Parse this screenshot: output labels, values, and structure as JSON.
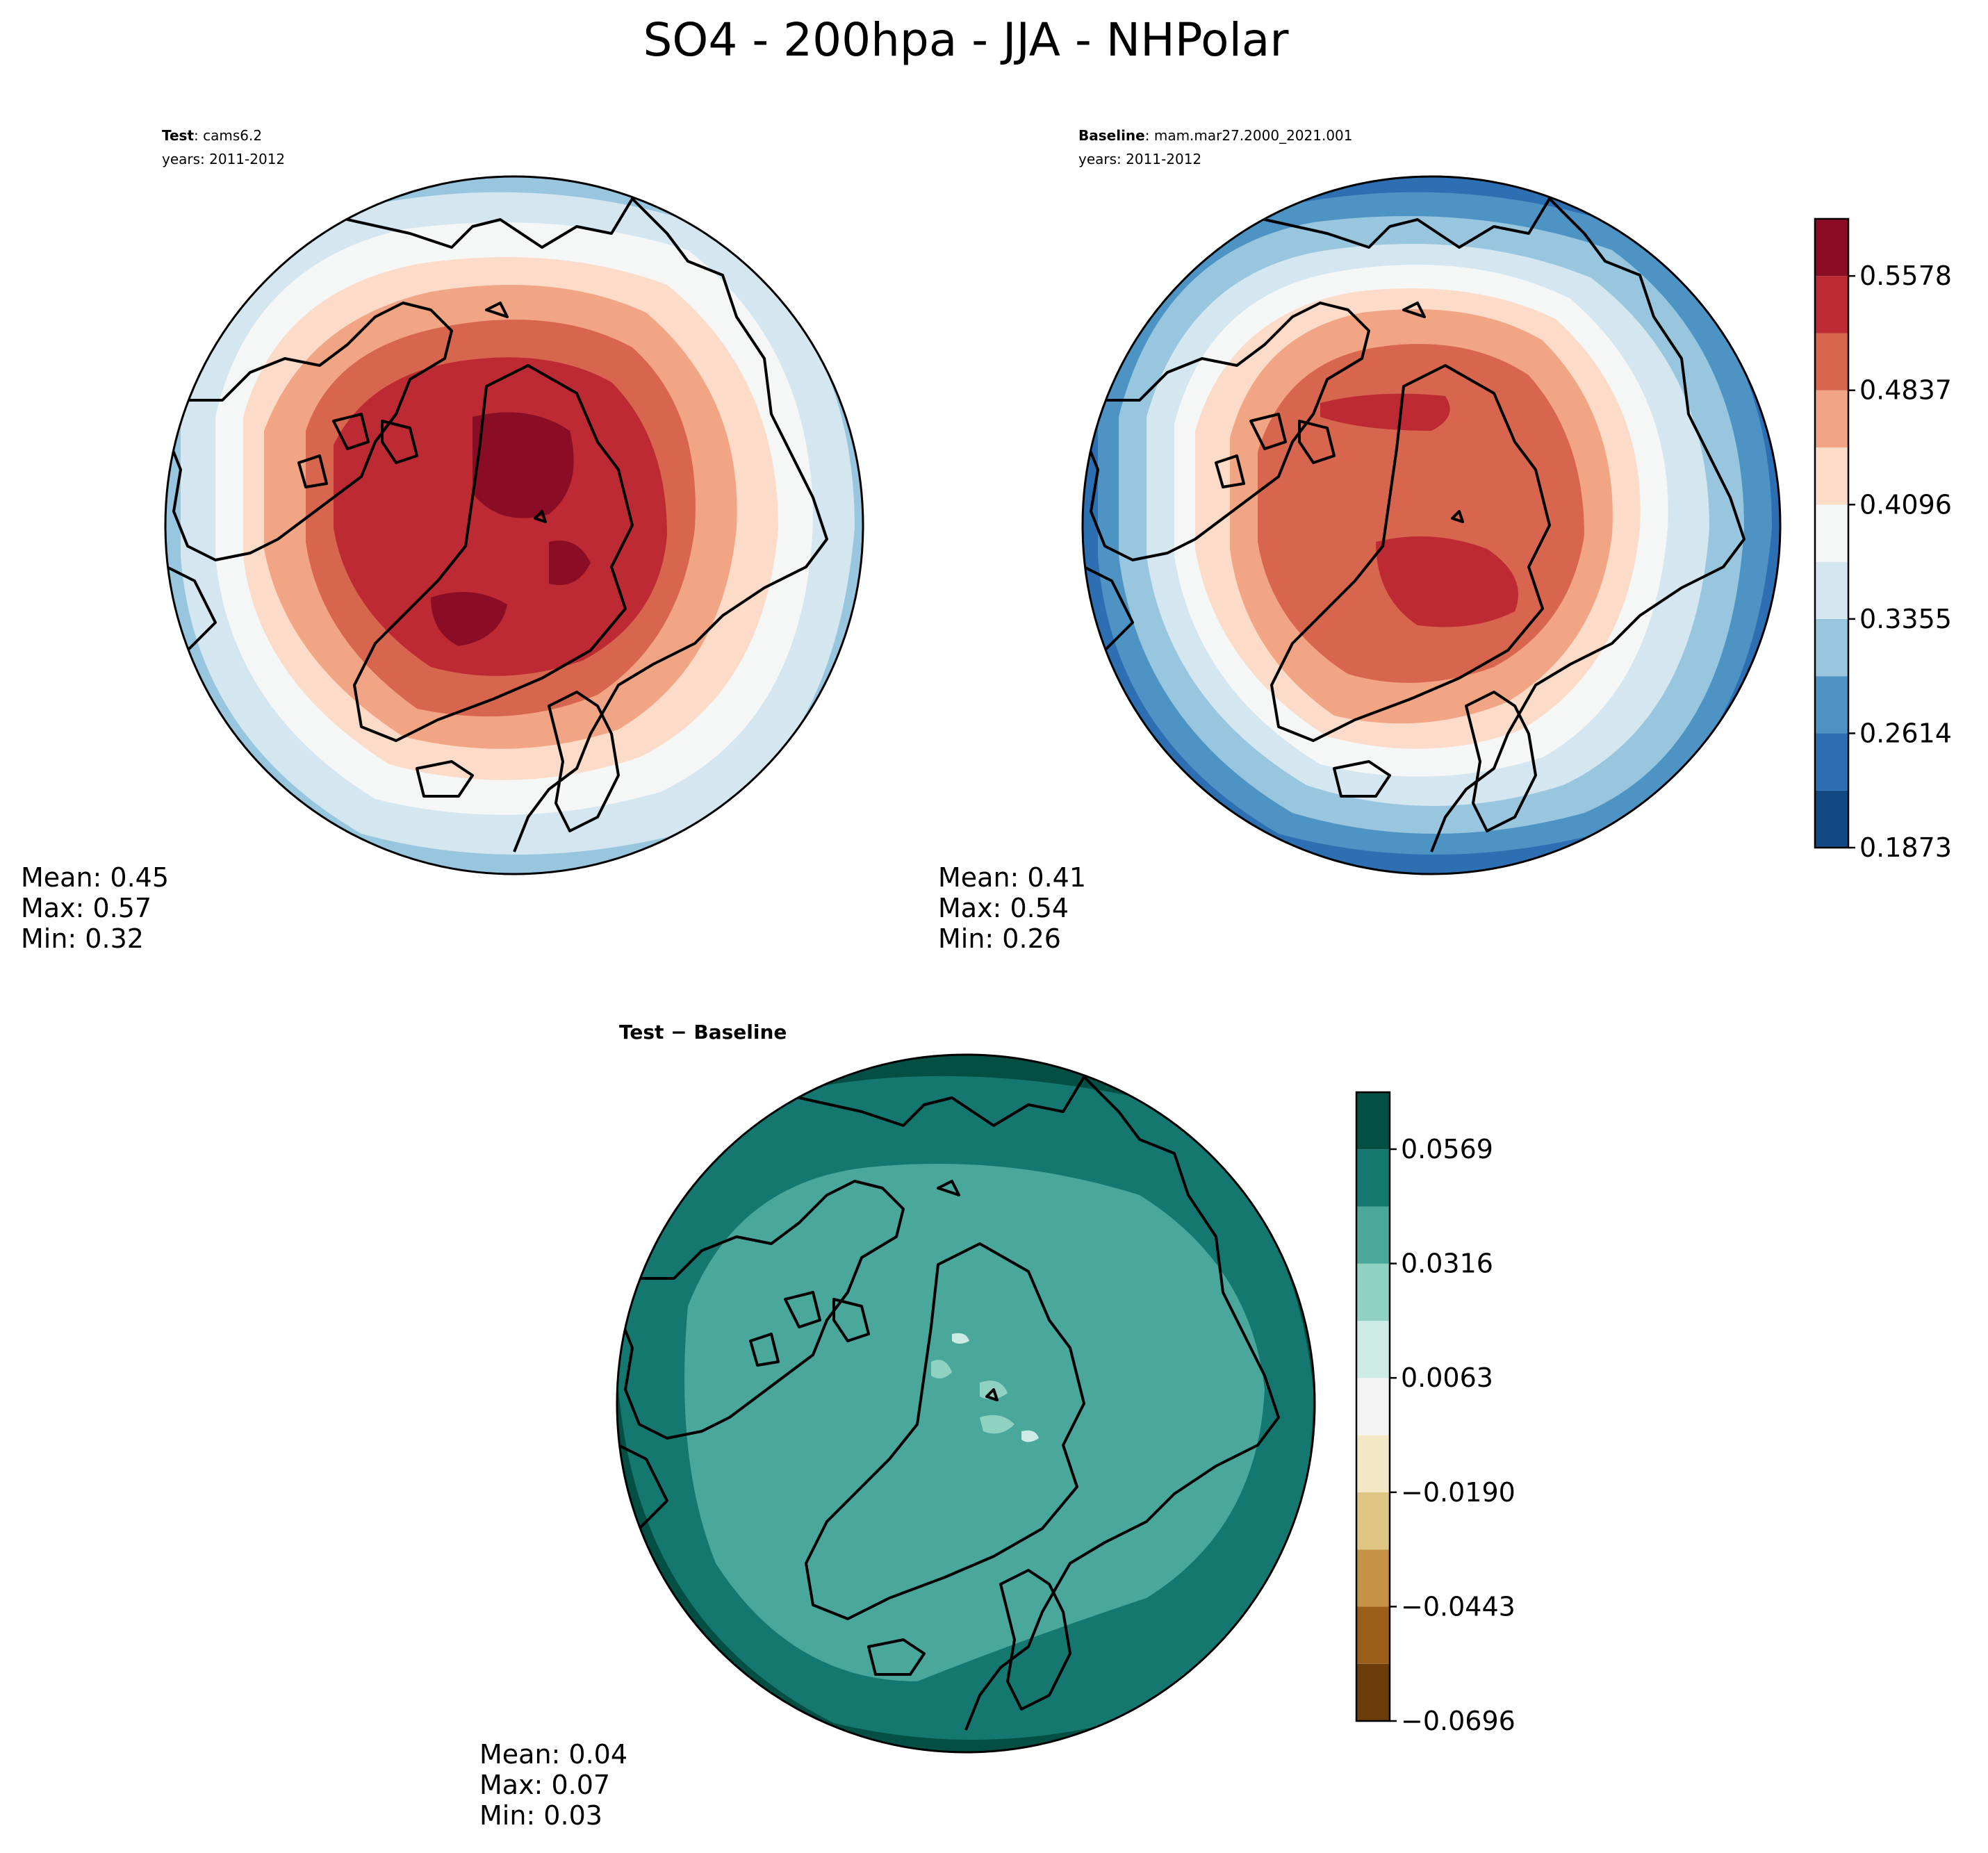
{
  "figure_title": "SO4 - 200hpa - JJA - NHPolar",
  "panels": [
    {
      "id": "test",
      "label_bold": "Test",
      "label_text": ": cams6.2",
      "years": "years: 2011-2012",
      "mean_label": "Mean:  0.45",
      "max_label": "Max:  0.57",
      "min_label": "Min:  0.32"
    },
    {
      "id": "baseline",
      "label_bold": "Baseline",
      "label_text": ": mam.mar27.2000_2021.001",
      "years": "years: 2011-2012",
      "mean_label": "Mean:  0.41",
      "max_label": "Max:  0.54",
      "min_label": "Min:  0.26"
    },
    {
      "id": "diff",
      "title": "Test − Baseline",
      "mean_label": "Mean:  0.04",
      "max_label": "Max:  0.07",
      "min_label": "Min:  0.03"
    }
  ],
  "chart_data": [
    {
      "type": "heatmap",
      "projection": "north-polar-stereographic",
      "title": "Test: cams6.2 (years: 2011-2012)",
      "variable": "SO4",
      "level": "200hpa",
      "season": "JJA",
      "mean": 0.45,
      "max": 0.57,
      "min": 0.32,
      "colormap": "RdBu_r",
      "pattern": "maximum (0.52-0.57) over Arctic Ocean / Greenland, decreasing toward outer ring (0.33-0.37)",
      "colorbar": {
        "range": [
          0.1873,
          0.5948
        ],
        "ticks": [
          0.1873,
          0.2614,
          0.3355,
          0.4096,
          0.4837,
          0.5578
        ],
        "tick_labels": [
          "0.1873",
          "0.2614",
          "0.3355",
          "0.4096",
          "0.4837",
          "0.5578"
        ],
        "colors": [
          "#124983",
          "#2c6fb2",
          "#4d94c5",
          "#98c6df",
          "#d4e6f0",
          "#f5f6f6",
          "#fcdbc8",
          "#f2a584",
          "#d8664f",
          "#bd2a33",
          "#8a0d25"
        ]
      }
    },
    {
      "type": "heatmap",
      "projection": "north-polar-stereographic",
      "title": "Baseline: mam.mar27.2000_2021.001 (years: 2011-2012)",
      "mean": 0.41,
      "max": 0.54,
      "min": 0.26,
      "colormap": "RdBu_r",
      "pattern": "maximum (0.50-0.54) over Arctic Ocean / Greenland, lowest (0.19-0.30) at outer ring",
      "colorbar": {
        "range": [
          0.1873,
          0.5948
        ],
        "ticks": [
          0.1873,
          0.2614,
          0.3355,
          0.4096,
          0.4837,
          0.5578
        ],
        "tick_labels": [
          "0.1873",
          "0.2614",
          "0.3355",
          "0.4096",
          "0.4837",
          "0.5578"
        ],
        "colors": [
          "#124983",
          "#2c6fb2",
          "#4d94c5",
          "#98c6df",
          "#d4e6f0",
          "#f5f6f6",
          "#fcdbc8",
          "#f2a584",
          "#d8664f",
          "#bd2a33",
          "#8a0d25"
        ]
      }
    },
    {
      "type": "heatmap",
      "projection": "north-polar-stereographic",
      "title": "Test − Baseline",
      "mean": 0.04,
      "max": 0.07,
      "min": 0.03,
      "colormap": "BrBG",
      "pattern": "0.032-0.044 over most of the interior, 0.044-0.057 toward outer ring, small 0.019-0.032 patches near pole",
      "colorbar": {
        "range": [
          -0.0696,
          0.0695
        ],
        "ticks": [
          -0.0696,
          -0.0443,
          -0.019,
          0.0063,
          0.0316,
          0.0569
        ],
        "tick_labels": [
          "−0.0696",
          "−0.0443",
          "−0.0190",
          "0.0063",
          "0.0316",
          "0.0569"
        ],
        "colors": [
          "#6b3d0b",
          "#9c5f1b",
          "#c69245",
          "#dfc685",
          "#f4e7c6",
          "#f4f4f4",
          "#cdeae5",
          "#8fd2c2",
          "#4aa79b",
          "#147870",
          "#034f43"
        ]
      }
    }
  ]
}
